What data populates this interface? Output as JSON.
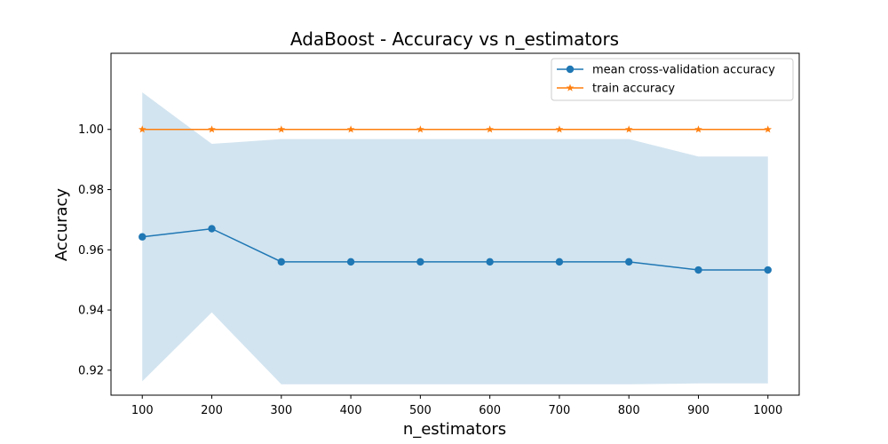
{
  "chart_data": {
    "type": "line",
    "title": "AdaBoost - Accuracy vs n_estimators",
    "xlabel": "n_estimators",
    "ylabel": "Accuracy",
    "x": [
      100,
      200,
      300,
      400,
      500,
      600,
      700,
      800,
      900,
      1000
    ],
    "x_tick_labels": [
      "100",
      "200",
      "300",
      "400",
      "500",
      "600",
      "700",
      "800",
      "900",
      "1000"
    ],
    "y_ticks": [
      0.92,
      0.94,
      0.96,
      0.98,
      1.0
    ],
    "y_tick_labels": [
      "0.92",
      "0.94",
      "0.96",
      "0.98",
      "1.00"
    ],
    "xlim": [
      55,
      1045
    ],
    "ylim": [
      0.9117,
      1.0253
    ],
    "grid": false,
    "legend_position": "top-right",
    "series": [
      {
        "name": "mean cross-validation accuracy",
        "marker": "circle",
        "color": "#1f77b4",
        "values": [
          0.9643,
          0.967,
          0.956,
          0.956,
          0.956,
          0.956,
          0.956,
          0.956,
          0.9533,
          0.9533
        ]
      },
      {
        "name": "train accuracy",
        "marker": "star",
        "color": "#ff7f0e",
        "values": [
          1.0,
          1.0,
          1.0,
          1.0,
          1.0,
          1.0,
          1.0,
          1.0,
          1.0,
          1.0
        ]
      }
    ],
    "band": {
      "series": "mean cross-validation accuracy",
      "color": "#1f77b4",
      "opacity": 0.2,
      "upper": [
        1.0123,
        0.9952,
        0.9968,
        0.9968,
        0.9968,
        0.9968,
        0.9968,
        0.9968,
        0.991,
        0.991
      ],
      "lower": [
        0.9163,
        0.9392,
        0.9153,
        0.9153,
        0.9153,
        0.9153,
        0.9153,
        0.9153,
        0.9156,
        0.9156
      ]
    }
  }
}
